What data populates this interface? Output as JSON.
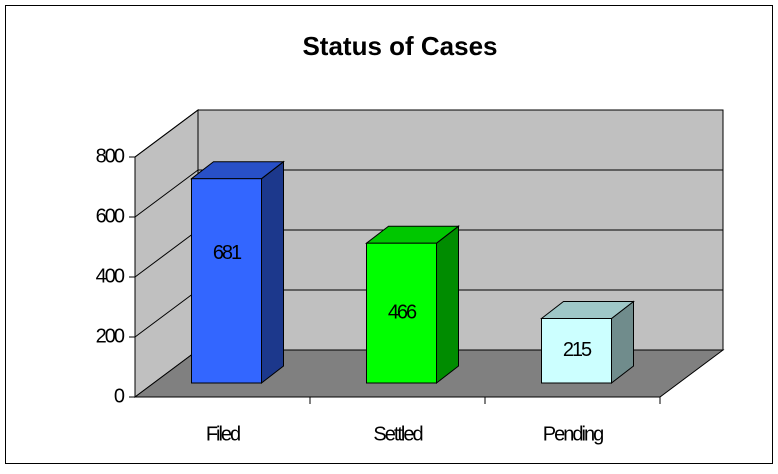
{
  "chart_data": {
    "type": "bar3d",
    "title": "Status of Cases",
    "categories": [
      "Filed",
      "Settled",
      "Pending"
    ],
    "values": [
      681,
      466,
      215
    ],
    "colors": [
      "#3366ff",
      "#00ff00",
      "#ccffff"
    ],
    "ylim": [
      0,
      800
    ],
    "yticks": [
      0,
      200,
      400,
      600,
      800
    ],
    "grid": true
  }
}
